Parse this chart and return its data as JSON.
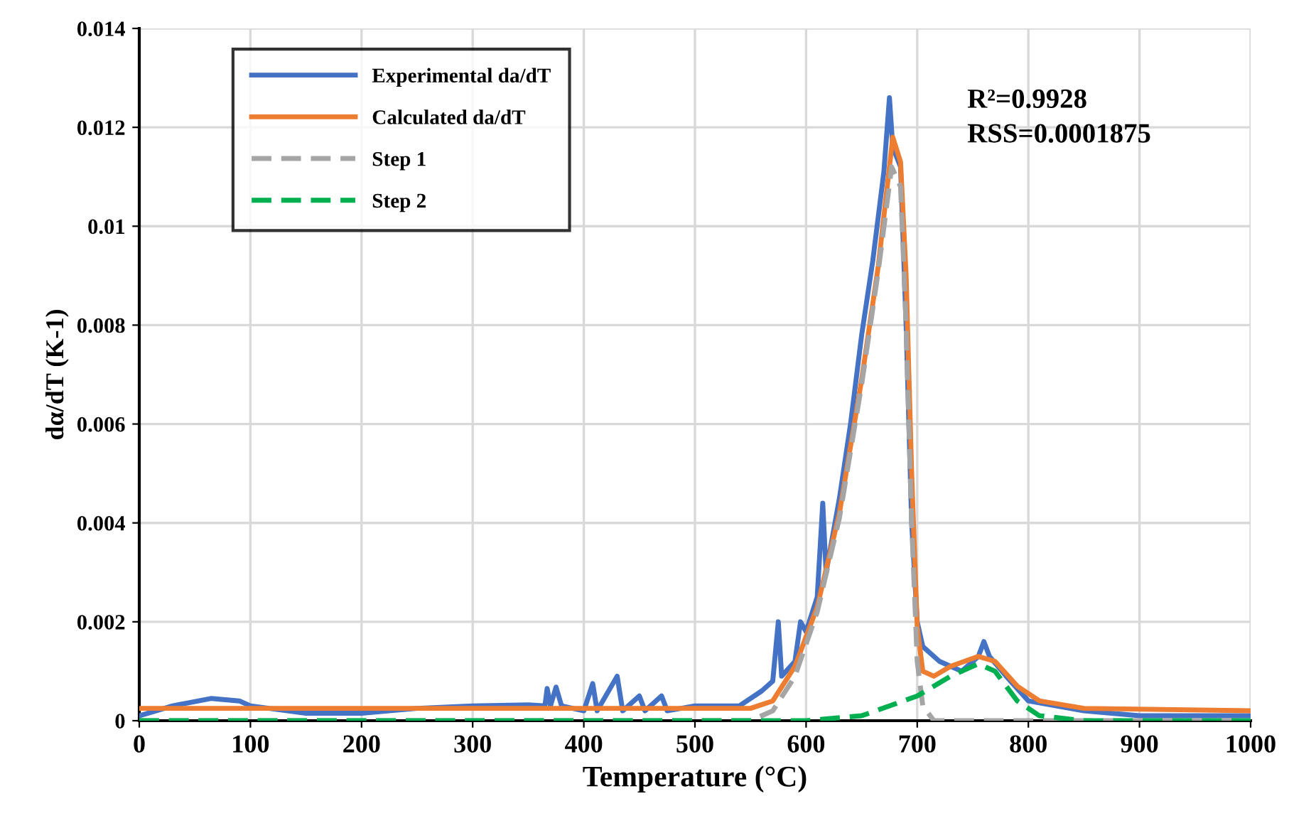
{
  "chart_data": {
    "type": "line",
    "xlabel": "Temperature (°C)",
    "ylabel": "dα/dT (K-1)",
    "xlim": [
      0,
      1000
    ],
    "ylim": [
      0,
      0.014
    ],
    "xticks": [
      0,
      100,
      200,
      300,
      400,
      500,
      600,
      700,
      800,
      900,
      1000
    ],
    "yticks": [
      0,
      0.002,
      0.004,
      0.006,
      0.008,
      0.01,
      0.012,
      0.014
    ],
    "grid": true,
    "legend": "top left",
    "marker": "none",
    "annotations": [
      "R²=0.9928",
      "RSS=0.0001875"
    ],
    "series": [
      {
        "name": "Experimental da/dT",
        "color": "#4472c4",
        "line_style": "solid",
        "x": [
          0,
          30,
          65,
          90,
          100,
          150,
          200,
          250,
          300,
          350,
          365,
          367,
          370,
          375,
          380,
          400,
          408,
          412,
          430,
          435,
          450,
          455,
          470,
          475,
          500,
          540,
          560,
          570,
          575,
          578,
          590,
          595,
          600,
          610,
          615,
          618,
          630,
          640,
          650,
          660,
          670,
          675,
          678,
          685,
          690,
          695,
          700,
          705,
          720,
          740,
          755,
          760,
          765,
          780,
          800,
          850,
          900,
          1000
        ],
        "values": [
          0.0001,
          0.0003,
          0.00045,
          0.0004,
          0.0003,
          0.00015,
          0.00015,
          0.00025,
          0.0003,
          0.00032,
          0.0003,
          0.00065,
          0.0003,
          0.00068,
          0.0003,
          0.0002,
          0.00075,
          0.0002,
          0.0009,
          0.0002,
          0.0005,
          0.0002,
          0.0005,
          0.0002,
          0.0003,
          0.0003,
          0.0006,
          0.0008,
          0.002,
          0.0009,
          0.0012,
          0.002,
          0.0018,
          0.0025,
          0.0044,
          0.003,
          0.0045,
          0.006,
          0.0078,
          0.0093,
          0.0111,
          0.0126,
          0.0116,
          0.0112,
          0.008,
          0.004,
          0.002,
          0.0015,
          0.0012,
          0.001,
          0.0013,
          0.0016,
          0.0013,
          0.0009,
          0.0004,
          0.0002,
          0.0001,
          0.0001
        ]
      },
      {
        "name": "Calculated da/dT",
        "color": "#ed7d31",
        "line_style": "solid",
        "x": [
          0,
          550,
          570,
          590,
          610,
          630,
          650,
          665,
          678,
          685,
          690,
          695,
          700,
          705,
          715,
          730,
          755,
          770,
          790,
          810,
          850,
          1000
        ],
        "values": [
          0.00025,
          0.00025,
          0.0004,
          0.0011,
          0.0023,
          0.0042,
          0.0069,
          0.0092,
          0.0118,
          0.0113,
          0.009,
          0.005,
          0.0019,
          0.001,
          0.0009,
          0.0011,
          0.0013,
          0.0012,
          0.0007,
          0.0004,
          0.00025,
          0.0002
        ]
      },
      {
        "name": "Step 1",
        "color": "#a5a5a5",
        "line_style": "dashed",
        "x": [
          0,
          550,
          570,
          590,
          610,
          630,
          650,
          665,
          677,
          685,
          690,
          695,
          700,
          705,
          715,
          1000
        ],
        "values": [
          0,
          0,
          0.0002,
          0.0009,
          0.0022,
          0.0041,
          0.0068,
          0.0091,
          0.0112,
          0.0108,
          0.008,
          0.004,
          0.0012,
          0.0003,
          0,
          0
        ]
      },
      {
        "name": "Step 2",
        "color": "#00b050",
        "line_style": "dashed",
        "x": [
          0,
          600,
          650,
          700,
          730,
          755,
          770,
          790,
          810,
          850,
          1000
        ],
        "values": [
          0,
          0,
          0.0001,
          0.0005,
          0.0009,
          0.00115,
          0.001,
          0.0004,
          0.0001,
          0,
          0
        ]
      }
    ]
  }
}
